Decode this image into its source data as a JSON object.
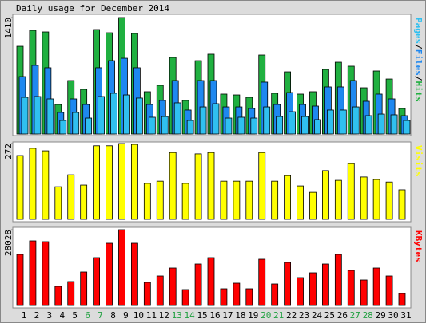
{
  "chart_data": [
    {
      "type": "bar",
      "title": "Daily usage for December 2014",
      "ylim": [
        0,
        1410
      ],
      "yticks": [
        1410
      ],
      "legend_separator": "/",
      "series": [
        {
          "name": "Hits",
          "color": "#20b040",
          "values": [
            1062,
            1255,
            1236,
            357,
            647,
            541,
            1265,
            1226,
            1410,
            1217,
            512,
            589,
            927,
            406,
            888,
            966,
            483,
            473,
            444,
            956,
            493,
            753,
            483,
            512,
            782,
            869,
            821,
            560,
            763,
            666,
            309
          ]
        },
        {
          "name": "Files",
          "color": "#1e88f0",
          "values": [
            695,
            831,
            802,
            261,
            425,
            357,
            802,
            888,
            917,
            802,
            357,
            406,
            647,
            290,
            647,
            647,
            328,
            328,
            309,
            628,
            357,
            502,
            357,
            338,
            570,
            570,
            647,
            396,
            483,
            425,
            222
          ]
        },
        {
          "name": "Pages",
          "color": "#30c0f0",
          "values": [
            444,
            454,
            425,
            164,
            261,
            193,
            454,
            493,
            473,
            435,
            203,
            212,
            377,
            164,
            328,
            367,
            193,
            203,
            193,
            328,
            212,
            270,
            212,
            174,
            290,
            290,
            328,
            222,
            241,
            232,
            164
          ]
        }
      ]
    },
    {
      "type": "bar",
      "ylim": [
        0,
        272
      ],
      "yticks": [
        272
      ],
      "series": [
        {
          "name": "Visits",
          "color": "#ffff00",
          "values": [
            229,
            255,
            246,
            117,
            160,
            123,
            264,
            264,
            272,
            269,
            129,
            137,
            240,
            129,
            235,
            240,
            137,
            137,
            137,
            240,
            137,
            157,
            120,
            97,
            175,
            140,
            200,
            152,
            143,
            134,
            106
          ]
        }
      ]
    },
    {
      "type": "bar",
      "ylim": [
        0,
        28028
      ],
      "yticks": [
        28028
      ],
      "categories": [
        "1",
        "2",
        "3",
        "4",
        "5",
        "6",
        "7",
        "8",
        "9",
        "10",
        "11",
        "12",
        "13",
        "14",
        "15",
        "16",
        "17",
        "18",
        "19",
        "20",
        "21",
        "22",
        "23",
        "24",
        "25",
        "26",
        "27",
        "28",
        "29",
        "30",
        "31"
      ],
      "category_colors": [
        "#000",
        "#000",
        "#000",
        "#000",
        "#000",
        "#20a040",
        "#20a040",
        "#000",
        "#000",
        "#000",
        "#000",
        "#000",
        "#20a040",
        "#20a040",
        "#000",
        "#000",
        "#000",
        "#000",
        "#000",
        "#20a040",
        "#20a040",
        "#000",
        "#000",
        "#000",
        "#000",
        "#000",
        "#20a040",
        "#20a040",
        "#000",
        "#000",
        "#000"
      ],
      "series": [
        {
          "name": "KBytes",
          "color": "#ff0000",
          "values": [
            18882,
            23897,
            23602,
            7081,
            8851,
            12392,
            17702,
            23012,
            28028,
            23012,
            8556,
            10916,
            13867,
            5901,
            15342,
            17702,
            6196,
            8261,
            6196,
            17112,
            7966,
            15932,
            10326,
            12097,
            15342,
            18882,
            12982,
            9441,
            13867,
            10916,
            4426
          ]
        }
      ]
    }
  ]
}
